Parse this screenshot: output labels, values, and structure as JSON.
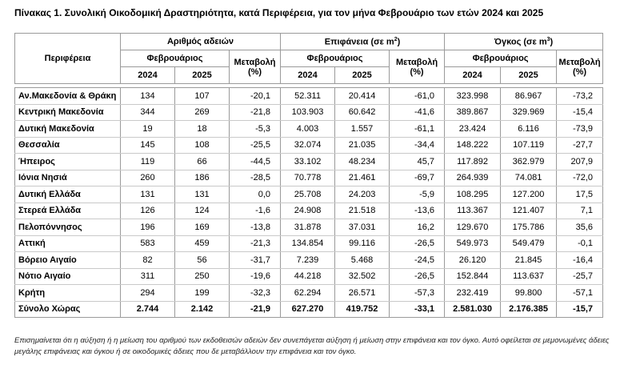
{
  "title": "Πίνακας 1. Συνολική Οικοδομική Δραστηριότητα, κατά  Περιφέρεια, για τον μήνα Φεβρουάριο των ετών 2024 και 2025",
  "table": {
    "header": {
      "region": "Περιφέρεια",
      "groups": [
        {
          "label": "Αριθμός αδειών",
          "month": "Φεβρουάριος",
          "change": "Μεταβολή (%)",
          "years": [
            "2024",
            "2025"
          ]
        },
        {
          "label": "Επιφάνεια (σε m",
          "sup": "2",
          "end": ")",
          "month": "Φεβρουάριος",
          "change": "Μεταβολή (%)",
          "years": [
            "2024",
            "2025"
          ]
        },
        {
          "label": "Όγκος (σε m",
          "sup": "3",
          "end": ")",
          "month": "Φεβρουάριος",
          "change": "Μεταβολή (%)",
          "years": [
            "2024",
            "2025"
          ]
        }
      ]
    },
    "rows": [
      {
        "region": "Αν.Μακεδονία & Θράκη",
        "values": [
          "134",
          "107",
          "-20,1",
          "52.311",
          "20.414",
          "-61,0",
          "323.998",
          "86.967",
          "-73,2"
        ]
      },
      {
        "region": "Κεντρική Μακεδονία",
        "values": [
          "344",
          "269",
          "-21,8",
          "103.903",
          "60.642",
          "-41,6",
          "389.867",
          "329.969",
          "-15,4"
        ]
      },
      {
        "region": "Δυτική Μακεδονία",
        "values": [
          "19",
          "18",
          "-5,3",
          "4.003",
          "1.557",
          "-61,1",
          "23.424",
          "6.116",
          "-73,9"
        ]
      },
      {
        "region": "Θεσσαλία",
        "values": [
          "145",
          "108",
          "-25,5",
          "32.074",
          "21.035",
          "-34,4",
          "148.222",
          "107.119",
          "-27,7"
        ]
      },
      {
        "region": "Ήπειρος",
        "values": [
          "119",
          "66",
          "-44,5",
          "33.102",
          "48.234",
          "45,7",
          "117.892",
          "362.979",
          "207,9"
        ]
      },
      {
        "region": "Ιόνια Νησιά",
        "values": [
          "260",
          "186",
          "-28,5",
          "70.778",
          "21.461",
          "-69,7",
          "264.939",
          "74.081",
          "-72,0"
        ]
      },
      {
        "region": "Δυτική Ελλάδα",
        "values": [
          "131",
          "131",
          "0,0",
          "25.708",
          "24.203",
          "-5,9",
          "108.295",
          "127.200",
          "17,5"
        ]
      },
      {
        "region": "Στερεά Ελλάδα",
        "values": [
          "126",
          "124",
          "-1,6",
          "24.908",
          "21.518",
          "-13,6",
          "113.367",
          "121.407",
          "7,1"
        ]
      },
      {
        "region": "Πελοπόννησος",
        "values": [
          "196",
          "169",
          "-13,8",
          "31.878",
          "37.031",
          "16,2",
          "129.670",
          "175.786",
          "35,6"
        ]
      },
      {
        "region": "Αττική",
        "values": [
          "583",
          "459",
          "-21,3",
          "134.854",
          "99.116",
          "-26,5",
          "549.973",
          "549.479",
          "-0,1"
        ]
      },
      {
        "region": "Βόρειο Αιγαίο",
        "values": [
          "82",
          "56",
          "-31,7",
          "7.239",
          "5.468",
          "-24,5",
          "26.120",
          "21.845",
          "-16,4"
        ]
      },
      {
        "region": "Νότιο Αιγαίο",
        "values": [
          "311",
          "250",
          "-19,6",
          "44.218",
          "32.502",
          "-26,5",
          "152.844",
          "113.637",
          "-25,7"
        ]
      },
      {
        "region": "Κρήτη",
        "values": [
          "294",
          "199",
          "-32,3",
          "62.294",
          "26.571",
          "-57,3",
          "232.419",
          "99.800",
          "-57,1"
        ]
      }
    ],
    "total": {
      "region": "Σύνολο Χώρας",
      "values": [
        "2.744",
        "2.142",
        "-21,9",
        "627.270",
        "419.752",
        "-33,1",
        "2.581.030",
        "2.176.385",
        "-15,7"
      ]
    }
  },
  "footnote": "Επισημαίνεται ότι η αύξηση ή η μείωση του αριθμού των εκδοθεισών αδειών δεν συνεπάγεται αύξηση ή μείωση στην επιφάνεια και τον όγκο. Αυτό οφείλεται σε μεμονωμένες άδειες μεγάλης επιφάνειας και όγκου ή σε οικοδομικές άδειες που δε μεταβάλλουν την επιφάνεια και τον όγκο."
}
